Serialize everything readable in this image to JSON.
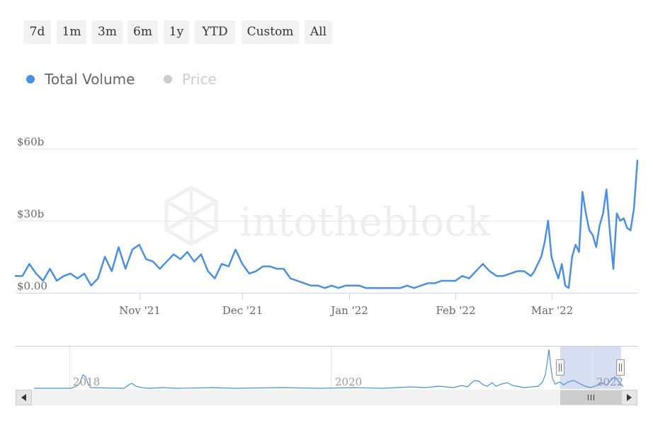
{
  "range_selector": {
    "buttons": [
      "7d",
      "1m",
      "3m",
      "6m",
      "1y",
      "YTD",
      "Custom",
      "All"
    ]
  },
  "legend": {
    "items": [
      {
        "label": "Total Volume",
        "color": "#4a90e2",
        "active": true
      },
      {
        "label": "Price",
        "color": "#cccccc",
        "active": false
      }
    ]
  },
  "watermark": "intotheblock",
  "colors": {
    "series": "#4a90e2",
    "grid": "#e6e6e6",
    "navigator_mask": "#cfd8ef"
  },
  "chart_data": {
    "type": "line",
    "title": "",
    "xlabel": "",
    "ylabel": "",
    "ylim": [
      0,
      60
    ],
    "y_unit": "billion USD",
    "y_ticks": [
      0,
      30,
      60
    ],
    "y_tick_labels": [
      "$0.00",
      "$30b",
      "$60b"
    ],
    "x_ticks": [
      "2021-11-01",
      "2021-12-01",
      "2022-01-01",
      "2022-02-01",
      "2022-03-01"
    ],
    "x_tick_labels": [
      "Nov '21",
      "Dec '21",
      "Jan '22",
      "Feb '22",
      "Mar '22"
    ],
    "xlim": [
      "2021-09-26",
      "2022-03-26"
    ],
    "grid": true,
    "legend_position": "top-left",
    "series": [
      {
        "name": "Total Volume",
        "x": [
          "2021-09-26",
          "2021-09-28",
          "2021-09-30",
          "2021-10-02",
          "2021-10-04",
          "2021-10-06",
          "2021-10-08",
          "2021-10-10",
          "2021-10-12",
          "2021-10-14",
          "2021-10-16",
          "2021-10-18",
          "2021-10-20",
          "2021-10-22",
          "2021-10-24",
          "2021-10-26",
          "2021-10-28",
          "2021-10-30",
          "2021-11-01",
          "2021-11-03",
          "2021-11-05",
          "2021-11-07",
          "2021-11-09",
          "2021-11-11",
          "2021-11-13",
          "2021-11-15",
          "2021-11-17",
          "2021-11-19",
          "2021-11-21",
          "2021-11-23",
          "2021-11-25",
          "2021-11-27",
          "2021-11-29",
          "2021-12-01",
          "2021-12-03",
          "2021-12-05",
          "2021-12-07",
          "2021-12-09",
          "2021-12-11",
          "2021-12-13",
          "2021-12-15",
          "2021-12-17",
          "2021-12-19",
          "2021-12-21",
          "2021-12-23",
          "2021-12-25",
          "2021-12-27",
          "2021-12-29",
          "2021-12-31",
          "2022-01-02",
          "2022-01-04",
          "2022-01-06",
          "2022-01-08",
          "2022-01-10",
          "2022-01-12",
          "2022-01-14",
          "2022-01-16",
          "2022-01-18",
          "2022-01-20",
          "2022-01-22",
          "2022-01-24",
          "2022-01-26",
          "2022-01-28",
          "2022-01-30",
          "2022-02-01",
          "2022-02-03",
          "2022-02-05",
          "2022-02-07",
          "2022-02-09",
          "2022-02-11",
          "2022-02-13",
          "2022-02-15",
          "2022-02-17",
          "2022-02-19",
          "2022-02-21",
          "2022-02-23",
          "2022-02-24",
          "2022-02-25",
          "2022-02-26",
          "2022-02-27",
          "2022-02-28",
          "2022-03-01",
          "2022-03-02",
          "2022-03-03",
          "2022-03-04",
          "2022-03-05",
          "2022-03-06",
          "2022-03-07",
          "2022-03-08",
          "2022-03-09",
          "2022-03-10",
          "2022-03-11",
          "2022-03-12",
          "2022-03-13",
          "2022-03-14",
          "2022-03-15",
          "2022-03-16",
          "2022-03-17",
          "2022-03-18",
          "2022-03-19",
          "2022-03-20",
          "2022-03-21",
          "2022-03-22",
          "2022-03-23",
          "2022-03-24",
          "2022-03-25",
          "2022-03-26"
        ],
        "values": [
          7,
          7,
          12,
          8,
          5,
          10,
          5,
          7,
          8,
          6,
          8,
          3,
          6,
          15,
          9,
          19,
          10,
          18,
          20,
          14,
          13,
          10,
          13,
          16,
          14,
          17,
          13,
          16,
          9,
          6,
          12,
          11,
          18,
          12,
          8,
          9,
          11,
          11,
          10,
          10,
          6,
          5,
          4,
          3,
          3,
          2,
          3,
          2,
          3,
          3,
          3,
          2,
          2,
          2,
          2,
          2,
          2,
          3,
          2,
          3,
          4,
          4,
          5,
          5,
          5,
          7,
          6,
          9,
          12,
          9,
          7,
          7,
          8,
          9,
          9,
          7,
          9,
          12,
          15,
          21,
          30,
          15,
          10,
          6,
          12,
          3,
          2,
          15,
          20,
          17,
          42,
          33,
          26,
          24,
          19,
          28,
          33,
          43,
          25,
          10,
          33,
          30,
          31,
          27,
          26,
          35,
          55
        ]
      }
    ]
  },
  "navigator": {
    "x_labels": [
      "2018",
      "2020",
      "2022"
    ]
  }
}
